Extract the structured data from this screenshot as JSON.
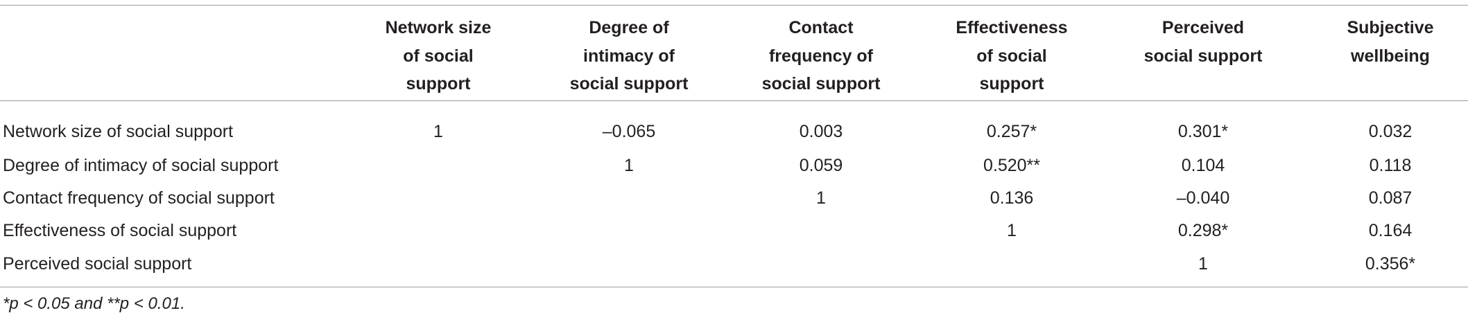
{
  "table": {
    "columns": [
      {
        "lines": [
          "Network size",
          "of social",
          "support"
        ]
      },
      {
        "lines": [
          "Degree of",
          "intimacy of",
          "social support"
        ]
      },
      {
        "lines": [
          "Contact",
          "frequency of",
          "social support"
        ]
      },
      {
        "lines": [
          "Effectiveness",
          "of social",
          "support"
        ]
      },
      {
        "lines": [
          "Perceived",
          "social support"
        ]
      },
      {
        "lines": [
          "Subjective",
          "wellbeing"
        ]
      }
    ],
    "rows": [
      {
        "label": "Network size of social support",
        "cells": [
          "1",
          "–0.065",
          "0.003",
          "0.257*",
          "0.301*",
          "0.032"
        ]
      },
      {
        "label": "Degree of intimacy of social support",
        "cells": [
          null,
          "1",
          "0.059",
          "0.520**",
          "0.104",
          "0.118"
        ]
      },
      {
        "label": "Contact frequency of social support",
        "cells": [
          null,
          null,
          "1",
          "0.136",
          "–0.040",
          "0.087"
        ]
      },
      {
        "label": "Effectiveness of social support",
        "cells": [
          null,
          null,
          null,
          "1",
          "0.298*",
          "0.164"
        ]
      },
      {
        "label": "Perceived social support",
        "cells": [
          null,
          null,
          null,
          null,
          "1",
          "0.356*"
        ]
      }
    ],
    "footnote": "*p < 0.05 and **p < 0.01."
  }
}
